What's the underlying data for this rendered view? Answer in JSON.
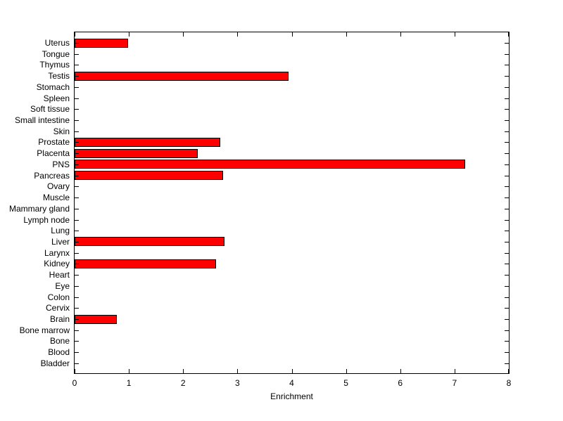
{
  "figure": {
    "background": "#FFFFFF",
    "text_color": "#000000"
  },
  "chart_data": {
    "type": "bar",
    "orientation": "horizontal",
    "title": "",
    "xlabel": "Enrichment",
    "ylabel": "",
    "xlim": [
      0,
      8
    ],
    "xticks": [
      0,
      1,
      2,
      3,
      4,
      5,
      6,
      7,
      8
    ],
    "grid": false,
    "legend": null,
    "bar_color": "#FF0000",
    "bar_edge_color": "#000000",
    "categories": [
      "Uterus",
      "Tongue",
      "Thymus",
      "Testis",
      "Stomach",
      "Spleen",
      "Soft tissue",
      "Small intestine",
      "Skin",
      "Prostate",
      "Placenta",
      "PNS",
      "Pancreas",
      "Ovary",
      "Muscle",
      "Mammary gland",
      "Lymph node",
      "Lung",
      "Liver",
      "Larynx",
      "Kidney",
      "Heart",
      "Eye",
      "Colon",
      "Cervix",
      "Brain",
      "Bone marrow",
      "Bone",
      "Blood",
      "Bladder"
    ],
    "values": [
      0.99,
      0,
      0,
      3.94,
      0,
      0,
      0,
      0,
      0,
      2.68,
      2.27,
      7.19,
      2.73,
      0,
      0,
      0,
      0,
      0,
      2.76,
      0,
      2.6,
      0,
      0,
      0,
      0,
      0.78,
      0,
      0,
      0,
      0
    ]
  }
}
